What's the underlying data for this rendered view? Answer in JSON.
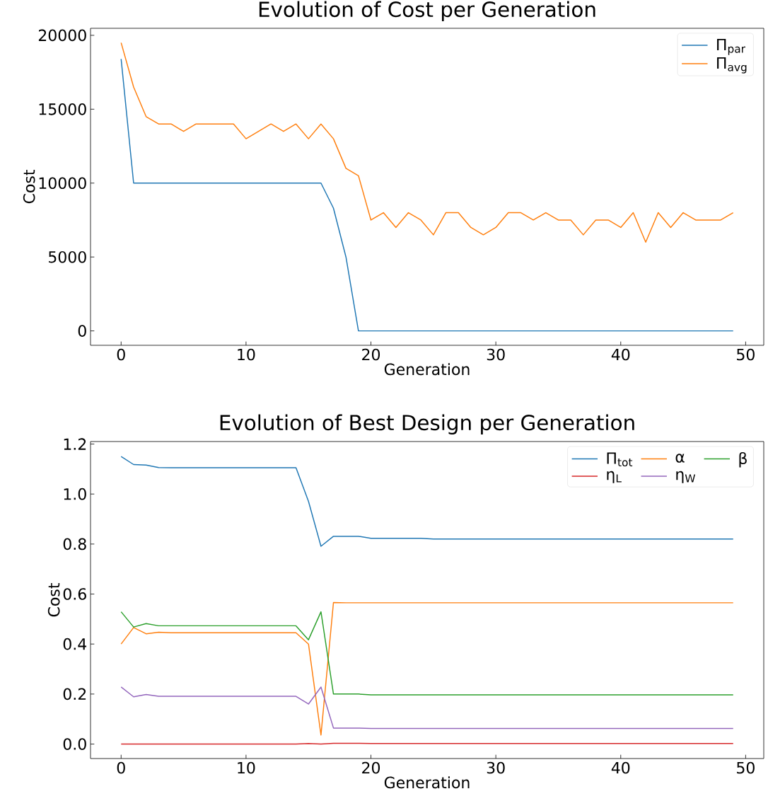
{
  "chart_data": [
    {
      "type": "line",
      "title": "Evolution of Cost per Generation",
      "xlabel": "Generation",
      "ylabel": "Cost",
      "x": [
        0,
        1,
        2,
        3,
        4,
        5,
        6,
        7,
        8,
        9,
        10,
        11,
        12,
        13,
        14,
        15,
        16,
        17,
        18,
        19,
        20,
        21,
        22,
        23,
        24,
        25,
        26,
        27,
        28,
        29,
        30,
        31,
        32,
        33,
        34,
        35,
        36,
        37,
        38,
        39,
        40,
        41,
        42,
        43,
        44,
        45,
        46,
        47,
        48,
        49
      ],
      "series": [
        {
          "name": "Π$_{par}$",
          "color": "#1f77b4",
          "values": [
            18400,
            10000,
            10000,
            10000,
            10000,
            10000,
            10000,
            10000,
            10000,
            10000,
            10000,
            10000,
            10000,
            10000,
            10000,
            10000,
            10000,
            8300,
            5000,
            0,
            0,
            0,
            0,
            0,
            0,
            0,
            0,
            0,
            0,
            0,
            0,
            0,
            0,
            0,
            0,
            0,
            0,
            0,
            0,
            0,
            0,
            0,
            0,
            0,
            0,
            0,
            0,
            0,
            0,
            0
          ]
        },
        {
          "name": "Π$_{avg}$",
          "color": "#ff7f0e",
          "values": [
            19500,
            16500,
            14500,
            14000,
            14000,
            13500,
            14000,
            14000,
            14000,
            14000,
            13000,
            13500,
            14000,
            13500,
            14000,
            13000,
            14000,
            13000,
            11000,
            10500,
            7500,
            8000,
            7000,
            8000,
            7500,
            6500,
            8000,
            8000,
            7000,
            6500,
            7000,
            8000,
            8000,
            7500,
            8000,
            7500,
            7500,
            6500,
            7500,
            7500,
            7000,
            8000,
            6000,
            8000,
            7000,
            8000,
            7500,
            7500,
            7500,
            8000
          ]
        }
      ],
      "xlim": [
        -2.45,
        51.45
      ],
      "ylim": [
        -975,
        20475
      ],
      "xticks": [
        0,
        10,
        20,
        30,
        40,
        50
      ],
      "yticks": [
        0,
        5000,
        10000,
        15000,
        20000
      ],
      "legend": "top right",
      "line_style": "solid"
    },
    {
      "type": "line",
      "title": "Evolution of Best Design per Generation",
      "xlabel": "Generation",
      "ylabel": "Cost",
      "x": [
        0,
        1,
        2,
        3,
        4,
        5,
        6,
        7,
        8,
        9,
        10,
        11,
        12,
        13,
        14,
        15,
        16,
        17,
        18,
        19,
        20,
        21,
        22,
        23,
        24,
        25,
        26,
        27,
        28,
        29,
        30,
        31,
        32,
        33,
        34,
        35,
        36,
        37,
        38,
        39,
        40,
        41,
        42,
        43,
        44,
        45,
        46,
        47,
        48,
        49
      ],
      "series": [
        {
          "name": "Π$_{tot}$",
          "color": "#1f77b4",
          "values": [
            1.15,
            1.118,
            1.116,
            1.106,
            1.105,
            1.105,
            1.105,
            1.105,
            1.105,
            1.105,
            1.105,
            1.105,
            1.105,
            1.105,
            1.105,
            0.971,
            0.791,
            0.831,
            0.831,
            0.831,
            0.823,
            0.823,
            0.823,
            0.823,
            0.823,
            0.82,
            0.82,
            0.82,
            0.82,
            0.82,
            0.82,
            0.82,
            0.82,
            0.82,
            0.82,
            0.82,
            0.82,
            0.82,
            0.82,
            0.82,
            0.82,
            0.82,
            0.82,
            0.82,
            0.82,
            0.82,
            0.82,
            0.82,
            0.82,
            0.82
          ]
        },
        {
          "name": "α",
          "color": "#ff7f0e",
          "values": [
            0.4,
            0.466,
            0.441,
            0.447,
            0.445,
            0.445,
            0.445,
            0.445,
            0.445,
            0.445,
            0.445,
            0.445,
            0.445,
            0.445,
            0.445,
            0.4,
            0.036,
            0.566,
            0.565,
            0.565,
            0.565,
            0.565,
            0.565,
            0.565,
            0.565,
            0.565,
            0.565,
            0.565,
            0.565,
            0.565,
            0.565,
            0.565,
            0.565,
            0.565,
            0.565,
            0.565,
            0.565,
            0.565,
            0.565,
            0.565,
            0.565,
            0.565,
            0.565,
            0.565,
            0.565,
            0.565,
            0.565,
            0.565,
            0.565,
            0.565
          ]
        },
        {
          "name": "β",
          "color": "#2ca02c",
          "values": [
            0.529,
            0.468,
            0.482,
            0.473,
            0.473,
            0.473,
            0.473,
            0.473,
            0.473,
            0.473,
            0.473,
            0.473,
            0.473,
            0.473,
            0.473,
            0.417,
            0.529,
            0.2,
            0.2,
            0.2,
            0.197,
            0.197,
            0.197,
            0.197,
            0.197,
            0.197,
            0.197,
            0.197,
            0.197,
            0.197,
            0.197,
            0.197,
            0.197,
            0.197,
            0.197,
            0.197,
            0.197,
            0.197,
            0.197,
            0.197,
            0.197,
            0.197,
            0.197,
            0.197,
            0.197,
            0.197,
            0.197,
            0.197,
            0.197,
            0.197
          ]
        },
        {
          "name": "η$_{L}$",
          "color": "#d62728",
          "values": [
            0,
            0,
            0,
            0,
            0,
            0,
            0,
            0,
            0,
            0,
            0,
            0,
            0,
            0,
            0,
            0.002,
            0,
            0.003,
            0.003,
            0.003,
            0.002,
            0.002,
            0.002,
            0.002,
            0.002,
            0.002,
            0.002,
            0.002,
            0.002,
            0.002,
            0.002,
            0.002,
            0.002,
            0.002,
            0.002,
            0.002,
            0.002,
            0.002,
            0.002,
            0.002,
            0.002,
            0.002,
            0.002,
            0.002,
            0.002,
            0.002,
            0.002,
            0.002,
            0.002,
            0.002
          ]
        },
        {
          "name": "η$_{W}$",
          "color": "#9467bd",
          "values": [
            0.228,
            0.189,
            0.198,
            0.191,
            0.191,
            0.191,
            0.191,
            0.191,
            0.191,
            0.191,
            0.191,
            0.191,
            0.191,
            0.191,
            0.191,
            0.16,
            0.228,
            0.064,
            0.064,
            0.064,
            0.062,
            0.062,
            0.062,
            0.062,
            0.062,
            0.062,
            0.062,
            0.062,
            0.062,
            0.062,
            0.062,
            0.062,
            0.062,
            0.062,
            0.062,
            0.062,
            0.062,
            0.062,
            0.062,
            0.062,
            0.062,
            0.062,
            0.062,
            0.062,
            0.062,
            0.062,
            0.062,
            0.062,
            0.062,
            0.062
          ]
        }
      ],
      "xlim": [
        -2.45,
        51.45
      ],
      "ylim": [
        -0.058,
        1.21
      ],
      "xticks": [
        0,
        10,
        20,
        30,
        40,
        50
      ],
      "yticks": [
        {
          "value": 0,
          "label": "0.0"
        },
        {
          "value": 0.2,
          "label": "0.2"
        },
        {
          "value": 0.4,
          "label": "0.4"
        },
        {
          "value": 0.6,
          "label": "0.6"
        },
        {
          "value": 0.8,
          "label": "0.8"
        },
        {
          "value": 1.0,
          "label": "1.0"
        },
        {
          "value": 1.2,
          "label": "1.2"
        }
      ],
      "legend": "top right",
      "line_style": "solid"
    }
  ]
}
